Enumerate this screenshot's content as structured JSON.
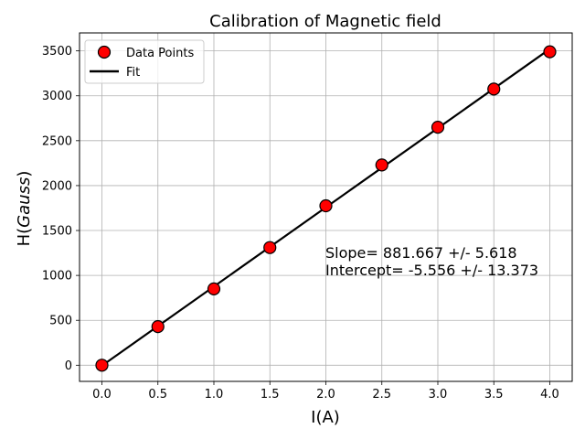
{
  "chart_data": {
    "type": "scatter",
    "title": "Calibration of Magnetic field",
    "xlabel": "I(A)",
    "ylabel_prefix": "H(",
    "ylabel_italic": "Gauss",
    "ylabel_suffix": ")",
    "xlim": [
      -0.2,
      4.2
    ],
    "ylim": [
      -180,
      3700
    ],
    "xticks": [
      0.0,
      0.5,
      1.0,
      1.5,
      2.0,
      2.5,
      3.0,
      3.5,
      4.0
    ],
    "xtick_labels": [
      "0.0",
      "0.5",
      "1.0",
      "1.5",
      "2.0",
      "2.5",
      "3.0",
      "3.5",
      "4.0"
    ],
    "yticks": [
      0,
      500,
      1000,
      1500,
      2000,
      2500,
      3000,
      3500
    ],
    "ytick_labels": [
      "0",
      "500",
      "1000",
      "1500",
      "2000",
      "2500",
      "3000",
      "3500"
    ],
    "grid": true,
    "legend_position": "top-left",
    "legend": [
      {
        "label": "Data Points",
        "marker": "circle",
        "color": "#ff0000",
        "edge": "#000000"
      },
      {
        "label": "Fit",
        "marker": "line",
        "color": "#000000"
      }
    ],
    "series": [
      {
        "name": "Data Points",
        "kind": "markers",
        "color": "#ff0000",
        "x": [
          0.0,
          0.5,
          1.0,
          1.5,
          2.0,
          2.5,
          3.0,
          3.5,
          4.0
        ],
        "y": [
          0,
          430,
          850,
          1310,
          1775,
          2230,
          2650,
          3075,
          3490
        ]
      },
      {
        "name": "Fit",
        "kind": "line",
        "color": "#000000",
        "x": [
          0.0,
          4.0
        ],
        "y": [
          -5.556,
          3521.112
        ]
      }
    ],
    "annotations": [
      "Slope= 881.667 +/- 5.618",
      "Intercept= -5.556 +/- 13.373"
    ]
  }
}
